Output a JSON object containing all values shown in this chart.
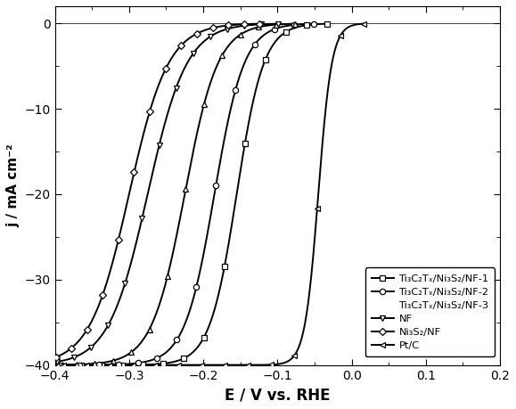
{
  "title": "",
  "xlabel": "E / V vs. RHE",
  "ylabel": "j / mA cm⁻²",
  "xlim": [
    -0.4,
    0.2
  ],
  "ylim": [
    -40,
    2
  ],
  "xticks": [
    -0.4,
    -0.3,
    -0.2,
    -0.1,
    0.0,
    0.1,
    0.2
  ],
  "yticks": [
    0,
    -10,
    -20,
    -30,
    -40
  ],
  "curves": [
    {
      "label": "Ti₃C₂Tₓ/Ni₃S₂/NF-1",
      "marker": "s",
      "onset": -0.155,
      "steep": 55,
      "jlim": -40
    },
    {
      "label": "Ti₃C₂Tₓ/Ni₃S₂/NF-2",
      "marker": "o",
      "onset": -0.185,
      "steep": 50,
      "jlim": -40
    },
    {
      "label": "Ti₃C₂Tₓ/Ni₃S₂/NF-3",
      "marker": "^",
      "onset": -0.225,
      "steep": 45,
      "jlim": -40
    },
    {
      "label": "NF",
      "marker": "v",
      "onset": -0.275,
      "steep": 38,
      "jlim": -40
    },
    {
      "label": "Ni₃S₂/NF",
      "marker": "D",
      "onset": -0.3,
      "steep": 38,
      "jlim": -40
    },
    {
      "label": "Pt/C",
      "marker": "<",
      "onset": -0.045,
      "steep": 110,
      "jlim": -40
    }
  ],
  "figsize": [
    5.79,
    4.59
  ],
  "dpi": 100
}
